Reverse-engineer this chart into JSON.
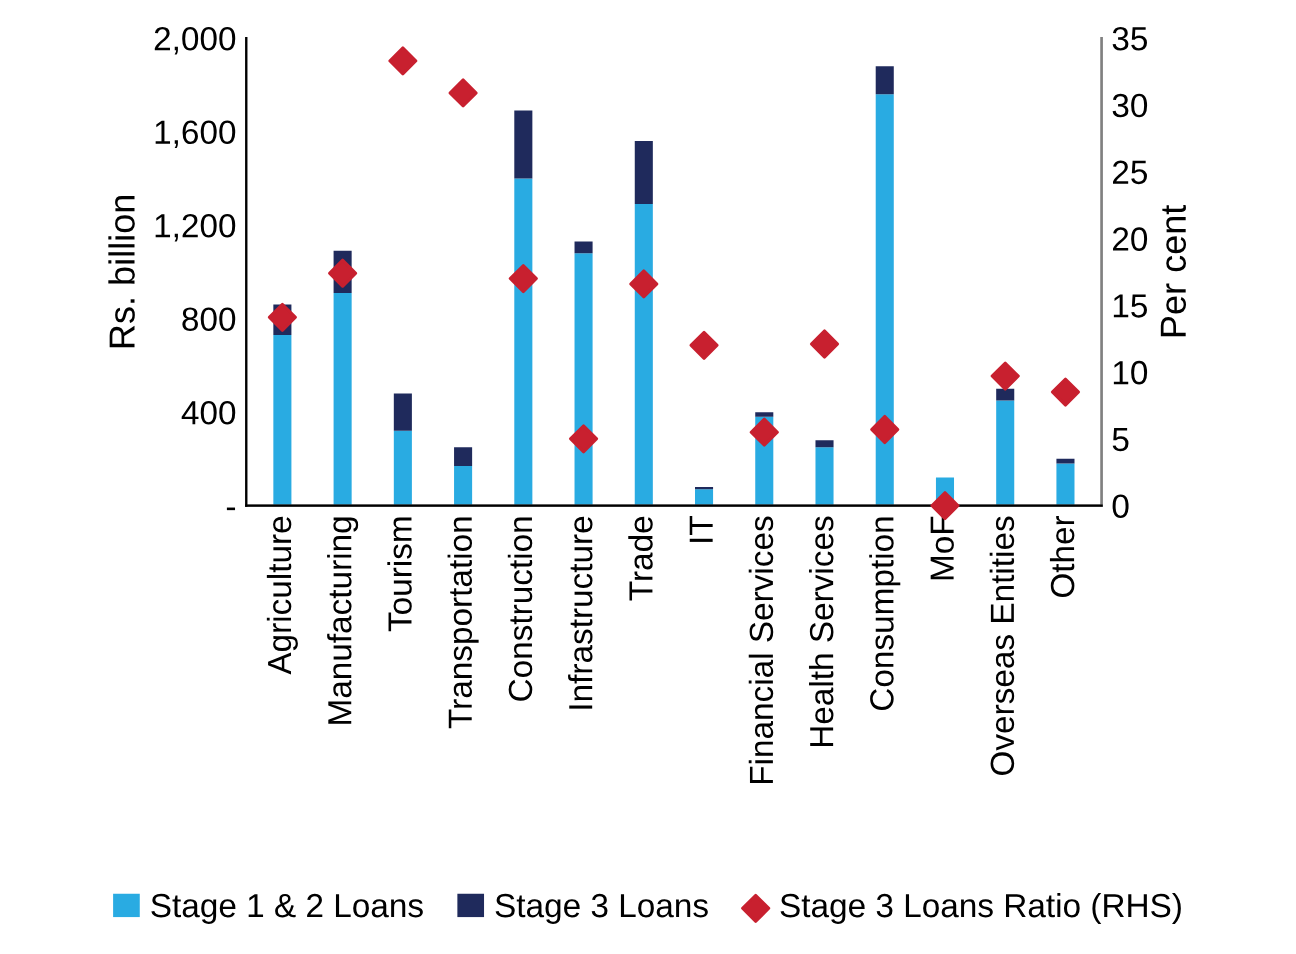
{
  "chart_data": {
    "type": "bar",
    "stacked": true,
    "ylabel": "Rs. billion",
    "y2label": "Per cent",
    "categories": [
      "Agriculture",
      "Manufacturing",
      "Tourism",
      "Transportation",
      "Construction",
      "Infrastructure",
      "Trade",
      "IT",
      "Financial Services",
      "Health Services",
      "Consumption",
      "MoF",
      "Overseas Entities",
      "Other"
    ],
    "series": [
      {
        "name": "Stage 1 & 2 Loans",
        "color": "#29abe2",
        "values": [
          730,
          910,
          320,
          170,
          1400,
          1080,
          1290,
          70,
          380,
          250,
          1760,
          120,
          450,
          180
        ]
      },
      {
        "name": "Stage 3 Loans",
        "color": "#1f2a5c",
        "values": [
          130,
          180,
          160,
          80,
          290,
          50,
          270,
          10,
          20,
          30,
          120,
          0,
          50,
          20
        ]
      },
      {
        "name": "Stage 3 Loans Ratio (RHS)",
        "type": "scatter",
        "axis": "y2",
        "marker": "diamond",
        "color": "#c8202f",
        "values": [
          14.1,
          17.4,
          33.3,
          30.9,
          17.0,
          5.0,
          16.6,
          12.0,
          5.5,
          12.1,
          5.7,
          0,
          9.7,
          8.5
        ]
      }
    ],
    "ylim": [
      0,
      2000
    ],
    "yticks": [
      {
        "value": 0,
        "label": "-"
      },
      {
        "value": 400,
        "label": "400"
      },
      {
        "value": 800,
        "label": "800"
      },
      {
        "value": 1200,
        "label": "1,200"
      },
      {
        "value": 1600,
        "label": "1,600"
      },
      {
        "value": 2000,
        "label": "2,000"
      }
    ],
    "y2lim": [
      0,
      35
    ],
    "y2ticks": [
      0,
      5,
      10,
      15,
      20,
      25,
      30,
      35
    ],
    "legend": "bottom",
    "grid": false
  }
}
